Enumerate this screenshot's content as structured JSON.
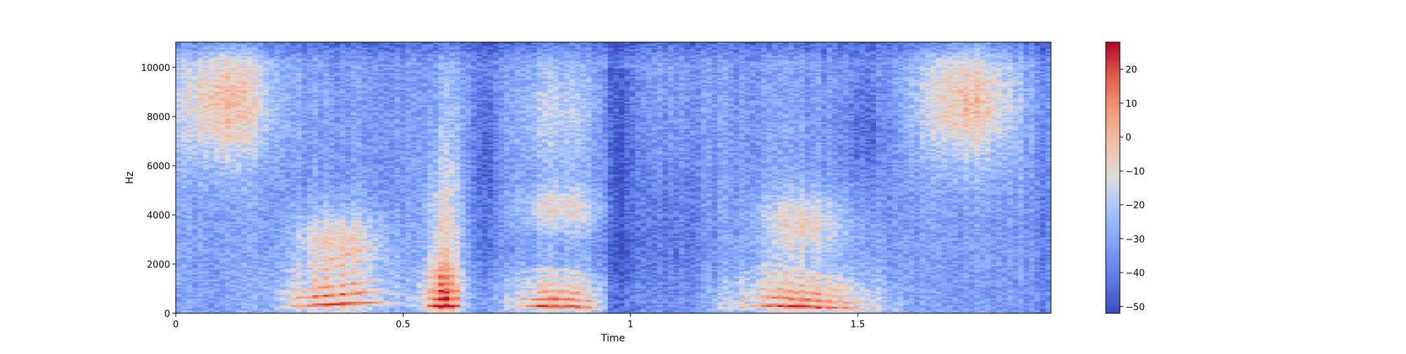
{
  "chart_data": {
    "type": "heatmap",
    "title": "",
    "xlabel": "Time",
    "ylabel": "Hz",
    "xlim": [
      0,
      1.925
    ],
    "ylim": [
      0,
      11025
    ],
    "xticks": [
      0,
      0.5,
      1,
      1.5
    ],
    "xtick_labels": [
      "0",
      "0.5",
      "1",
      "1.5"
    ],
    "yticks": [
      0,
      2000,
      4000,
      6000,
      8000,
      10000
    ],
    "ytick_labels": [
      "0",
      "2000",
      "4000",
      "6000",
      "8000",
      "10000"
    ],
    "colormap": "coolwarm",
    "colorbar": {
      "range": [
        -52,
        28
      ],
      "ticks": [
        -50,
        -40,
        -30,
        -20,
        -10,
        0,
        10,
        20
      ],
      "tick_labels": [
        "−50",
        "−40",
        "−30",
        "−20",
        "−10",
        "0",
        "10",
        "20"
      ]
    },
    "grid": false,
    "time_segments_s": [
      0,
      0.2,
      0.23,
      0.45,
      0.55,
      0.63,
      0.7,
      0.75,
      0.95,
      1.0,
      1.2,
      1.3,
      1.5,
      1.6,
      1.63,
      1.85,
      1.925
    ],
    "notes_in_chart": [],
    "features": [
      {
        "region": "0.00-0.22 s, 6000-10500 Hz",
        "level_db": 5
      },
      {
        "region": "0.23-0.45 s, 0-1000 Hz harmonics",
        "level_db": 22
      },
      {
        "region": "0.23-0.45 s, 2000-4000 Hz",
        "level_db": 5
      },
      {
        "region": "0.55-0.63 s, 0-5000 Hz",
        "level_db": 8
      },
      {
        "region": "0.75-0.95 s, 3000-5000 Hz",
        "level_db": 0
      },
      {
        "region": "0.75-0.95 s, 6000-10000 Hz",
        "level_db": -15
      },
      {
        "region": "0.95-1.00 s, 0-11025 Hz",
        "level_db": -45
      },
      {
        "region": "1.20-1.55 s, 0-800 Hz harmonics",
        "level_db": 18
      },
      {
        "region": "1.30-1.50 s, 3000-5000 Hz",
        "level_db": 5
      },
      {
        "region": "1.63-1.85 s, 6000-10500 Hz",
        "level_db": 5
      }
    ]
  }
}
